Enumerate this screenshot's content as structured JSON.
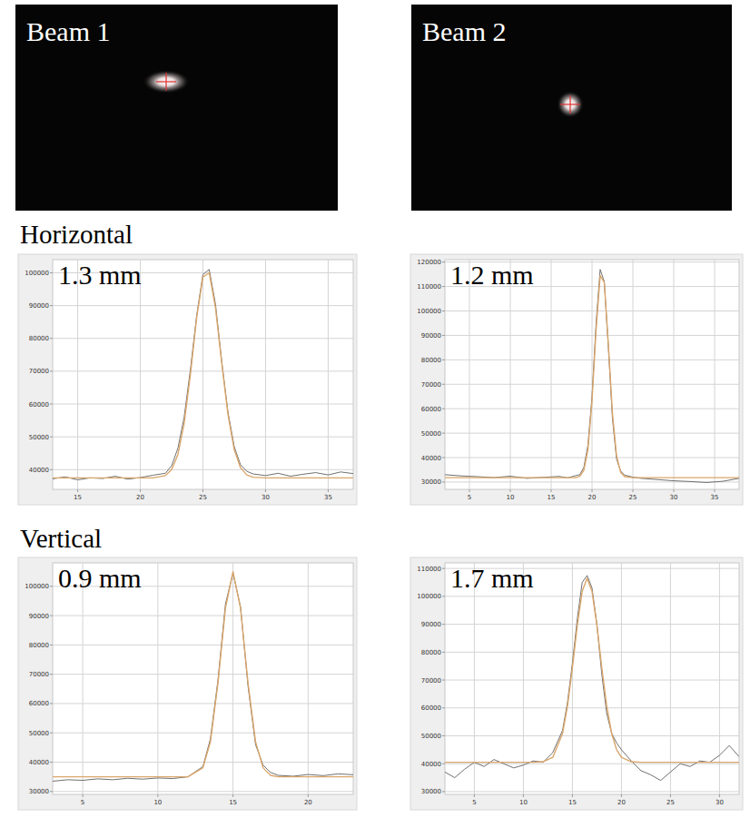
{
  "images": [
    {
      "label": "Beam 1"
    },
    {
      "label": "Beam 2"
    }
  ],
  "section_labels": {
    "horizontal": "Horizontal",
    "vertical": "Vertical"
  },
  "chart_data": [
    {
      "type": "line",
      "annotation": "1.3 mm",
      "x": [
        13,
        14,
        15,
        16,
        17,
        18,
        19,
        20,
        21,
        22,
        22.5,
        23,
        23.5,
        24,
        24.5,
        25,
        25.5,
        26,
        26.5,
        27,
        27.5,
        28,
        28.5,
        29,
        30,
        31,
        32,
        33,
        34,
        35,
        36,
        37
      ],
      "xlim": [
        13,
        37
      ],
      "xticks": [
        15,
        20,
        25,
        30,
        35
      ],
      "ylim": [
        34000,
        104000
      ],
      "yticks": [
        40000,
        50000,
        60000,
        70000,
        80000,
        90000,
        100000
      ],
      "grid": true,
      "series": [
        {
          "color": "#707070",
          "values": [
            37200,
            37800,
            36900,
            37500,
            37300,
            38000,
            37100,
            37600,
            38300,
            38900,
            41200,
            46500,
            56000,
            70500,
            87000,
            99500,
            101000,
            90500,
            73000,
            57500,
            47000,
            41500,
            39500,
            38700,
            38200,
            38900,
            38000,
            38600,
            39100,
            38400,
            39300,
            38800
          ]
        },
        {
          "color": "#d9a66b",
          "values": [
            37500,
            37500,
            37500,
            37500,
            37500,
            37500,
            37500,
            37500,
            37500,
            38200,
            40000,
            44600,
            54100,
            69000,
            86300,
            98700,
            100000,
            89400,
            72500,
            56800,
            46100,
            40600,
            38400,
            37700,
            37500,
            37500,
            37500,
            37500,
            37500,
            37500,
            37500,
            37500
          ]
        }
      ]
    },
    {
      "type": "line",
      "annotation": "1.2 mm",
      "x": [
        2,
        4,
        6,
        8,
        10,
        12,
        14,
        16,
        17,
        18,
        18.5,
        19,
        19.5,
        20,
        20.5,
        21,
        21.5,
        22,
        22.5,
        23,
        23.5,
        24,
        25,
        26,
        28,
        30,
        32,
        34,
        36,
        38
      ],
      "xlim": [
        2,
        38
      ],
      "xticks": [
        5,
        10,
        15,
        20,
        25,
        30,
        35
      ],
      "ylim": [
        27000,
        121000
      ],
      "yticks": [
        30000,
        40000,
        50000,
        60000,
        70000,
        80000,
        90000,
        100000,
        110000,
        120000
      ],
      "grid": true,
      "series": [
        {
          "color": "#707070",
          "values": [
            33000,
            32500,
            32200,
            31800,
            32400,
            31500,
            31900,
            32300,
            31700,
            32600,
            33000,
            36000,
            45000,
            65000,
            95000,
            117000,
            112000,
            85000,
            56000,
            39500,
            34500,
            32800,
            32000,
            31500,
            31000,
            30500,
            30200,
            29800,
            30300,
            31500
          ]
        },
        {
          "color": "#d9a66b",
          "values": [
            31800,
            31800,
            31800,
            31800,
            31800,
            31800,
            31800,
            31800,
            31800,
            31800,
            32350,
            34800,
            43300,
            63200,
            92400,
            114500,
            111700,
            86400,
            58200,
            40800,
            34000,
            32200,
            31800,
            31800,
            31800,
            31800,
            31800,
            31800,
            31800,
            31800
          ]
        }
      ]
    },
    {
      "type": "line",
      "annotation": "0.9 mm",
      "x": [
        3,
        4,
        5,
        6,
        7,
        8,
        9,
        10,
        11,
        12,
        13,
        13.5,
        14,
        14.5,
        15,
        15.5,
        16,
        16.5,
        17,
        17.5,
        18,
        19,
        20,
        21,
        22,
        23
      ],
      "xlim": [
        3,
        23
      ],
      "xticks": [
        5,
        10,
        15,
        20
      ],
      "ylim": [
        29000,
        108000
      ],
      "yticks": [
        30000,
        40000,
        50000,
        60000,
        70000,
        80000,
        90000,
        100000
      ],
      "grid": true,
      "series": [
        {
          "color": "#707070",
          "values": [
            33500,
            34000,
            33800,
            34300,
            34000,
            34500,
            34200,
            34600,
            34400,
            35000,
            38500,
            48000,
            68000,
            94000,
            104500,
            93000,
            66000,
            46000,
            39000,
            36500,
            35500,
            35200,
            35800,
            35400,
            36000,
            35700
          ]
        },
        {
          "color": "#d9a66b",
          "values": [
            35000,
            35000,
            35000,
            35000,
            35000,
            35000,
            35000,
            35000,
            35000,
            35000,
            38100,
            47000,
            67000,
            92600,
            105000,
            92600,
            67000,
            47000,
            38100,
            35500,
            35000,
            35000,
            35000,
            35000,
            35000,
            35000
          ]
        }
      ]
    },
    {
      "type": "line",
      "annotation": "1.7 mm",
      "x": [
        2,
        3,
        4,
        5,
        6,
        7,
        8,
        9,
        10,
        11,
        12,
        13,
        14,
        14.5,
        15,
        15.5,
        16,
        16.5,
        17,
        17.5,
        18,
        18.5,
        19,
        19.5,
        20,
        21,
        22,
        23,
        24,
        25,
        26,
        27,
        28,
        29,
        30,
        31,
        32
      ],
      "xlim": [
        2,
        32
      ],
      "xticks": [
        5,
        10,
        15,
        20,
        25,
        30
      ],
      "ylim": [
        29000,
        112000
      ],
      "yticks": [
        30000,
        40000,
        50000,
        60000,
        70000,
        80000,
        90000,
        100000,
        110000
      ],
      "grid": true,
      "series": [
        {
          "color": "#707070",
          "values": [
            37000,
            35000,
            38000,
            40500,
            39000,
            41500,
            40000,
            38500,
            39500,
            41000,
            40500,
            44000,
            52000,
            62000,
            76000,
            92000,
            105000,
            107500,
            103000,
            90000,
            72000,
            58000,
            51000,
            47500,
            45000,
            41000,
            37500,
            36000,
            34000,
            37000,
            40000,
            39000,
            41000,
            40500,
            43000,
            46500,
            42500
          ]
        },
        {
          "color": "#d9a66b",
          "values": [
            40500,
            40500,
            40500,
            40500,
            40500,
            40500,
            40500,
            40500,
            40500,
            40500,
            40700,
            42300,
            50900,
            60700,
            74400,
            89600,
            101800,
            106500,
            101800,
            89600,
            74400,
            60700,
            50900,
            45100,
            42300,
            40700,
            40500,
            40500,
            40500,
            40500,
            40500,
            40500,
            40500,
            40500,
            40500,
            40500,
            40500
          ]
        }
      ]
    }
  ]
}
